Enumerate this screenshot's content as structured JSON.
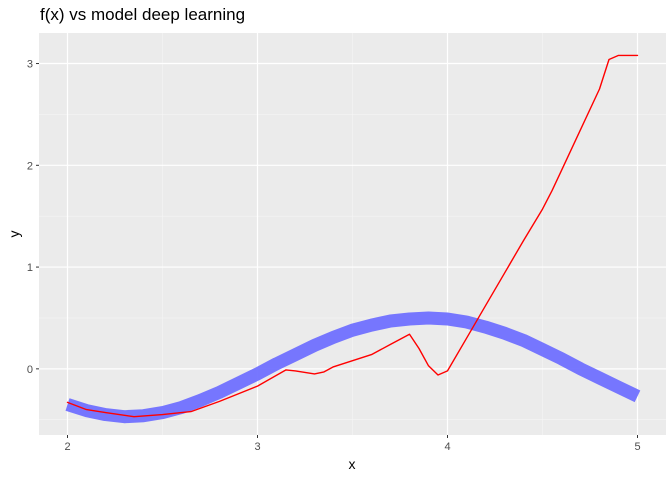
{
  "chart_data": {
    "type": "line",
    "title": "f(x) vs model deep learning",
    "xlabel": "x",
    "ylabel": "y",
    "xlim": [
      1.85,
      5.15
    ],
    "ylim": [
      -0.65,
      3.3
    ],
    "x_ticks": [
      2,
      3,
      4,
      5
    ],
    "y_ticks": [
      0,
      1,
      2,
      3
    ],
    "grid": true,
    "legend": "none",
    "series": [
      {
        "color": "#7070FF",
        "style": "thick-band",
        "x": [
          2.0,
          2.1,
          2.2,
          2.3,
          2.4,
          2.5,
          2.6,
          2.7,
          2.8,
          2.9,
          3.0,
          3.1,
          3.2,
          3.3,
          3.4,
          3.5,
          3.6,
          3.7,
          3.8,
          3.9,
          4.0,
          4.1,
          4.2,
          4.3,
          4.4,
          4.5,
          4.6,
          4.7,
          4.8,
          4.9,
          5.0
        ],
        "y": [
          -0.35,
          -0.41,
          -0.45,
          -0.47,
          -0.46,
          -0.43,
          -0.38,
          -0.31,
          -0.23,
          -0.14,
          -0.05,
          0.05,
          0.14,
          0.23,
          0.31,
          0.38,
          0.43,
          0.47,
          0.49,
          0.5,
          0.49,
          0.46,
          0.41,
          0.35,
          0.28,
          0.19,
          0.1,
          0.0,
          -0.09,
          -0.18,
          -0.27
        ]
      },
      {
        "color": "#FF0000",
        "style": "thin-line",
        "x": [
          2.0,
          2.1,
          2.2,
          2.35,
          2.5,
          2.65,
          2.8,
          3.0,
          3.15,
          3.2,
          3.3,
          3.35,
          3.4,
          3.5,
          3.6,
          3.7,
          3.8,
          3.85,
          3.9,
          3.95,
          4.0,
          4.1,
          4.2,
          4.3,
          4.4,
          4.5,
          4.55,
          4.6,
          4.7,
          4.8,
          4.85,
          4.9,
          5.0
        ],
        "y": [
          -0.33,
          -0.4,
          -0.43,
          -0.47,
          -0.45,
          -0.42,
          -0.32,
          -0.17,
          -0.01,
          -0.02,
          -0.05,
          -0.03,
          0.02,
          0.08,
          0.14,
          0.24,
          0.34,
          0.2,
          0.03,
          -0.06,
          -0.02,
          0.3,
          0.62,
          0.94,
          1.26,
          1.57,
          1.75,
          1.95,
          2.35,
          2.75,
          3.04,
          3.08,
          3.08
        ]
      }
    ]
  }
}
